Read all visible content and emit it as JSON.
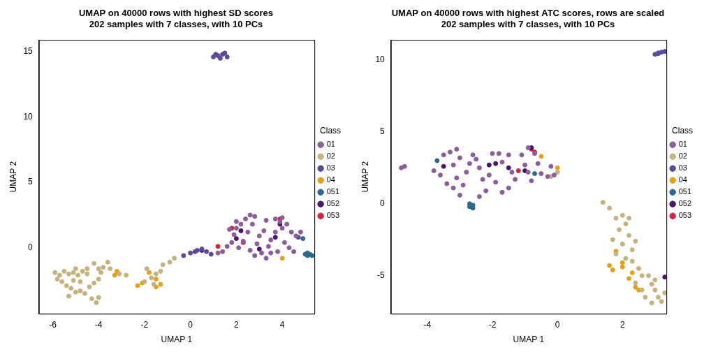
{
  "chart_data": [
    {
      "type": "scatter",
      "title": "UMAP on 40000 rows with highest SD scores",
      "subtitle": "202 samples with 7 classes, with 10 PCs",
      "x_label": "UMAP 1",
      "y_label": "UMAP 2",
      "legend": "right",
      "legend_title": "Class",
      "grid": false,
      "marker": "circle",
      "xlim": [
        -6.6,
        5.4
      ],
      "xticks": [
        -6,
        -4,
        -2,
        0,
        2,
        4
      ],
      "ylim": [
        -5.05,
        15.9
      ],
      "yticks": [
        0,
        5,
        10,
        15
      ],
      "series": [
        {
          "name": "01",
          "color": "#8B5E9B",
          "values": [
            [
              1.2,
              -0.4
            ],
            [
              1.4,
              -0.3
            ],
            [
              1.6,
              0.1
            ],
            [
              1.8,
              0.4
            ],
            [
              1.9,
              1.0
            ],
            [
              2.0,
              1.5
            ],
            [
              2.2,
              1.8
            ],
            [
              2.4,
              2.2
            ],
            [
              2.6,
              2.5
            ],
            [
              2.8,
              2.4
            ],
            [
              2.5,
              1.2
            ],
            [
              2.3,
              0.5
            ],
            [
              2.1,
              0.0
            ],
            [
              2.6,
              -0.2
            ],
            [
              2.9,
              0.3
            ],
            [
              3.0,
              0.9
            ],
            [
              3.2,
              1.3
            ],
            [
              3.1,
              -0.4
            ],
            [
              3.4,
              0.1
            ],
            [
              3.5,
              0.6
            ],
            [
              3.7,
              1.2
            ],
            [
              3.7,
              2.2
            ],
            [
              3.9,
              2.0
            ],
            [
              4.0,
              1.5
            ],
            [
              4.2,
              1.8
            ],
            [
              4.1,
              0.4
            ],
            [
              4.3,
              0.0
            ],
            [
              4.5,
              -0.3
            ],
            [
              4.6,
              0.9
            ],
            [
              4.4,
              1.2
            ],
            [
              3.8,
              -0.3
            ],
            [
              2.8,
              -0.6
            ],
            [
              3.3,
              -0.8
            ],
            [
              1.7,
              1.4
            ],
            [
              2.0,
              2.0
            ],
            [
              3.5,
              -0.4
            ],
            [
              4.8,
              1.2
            ],
            [
              4.0,
              2.3
            ],
            [
              2.7,
              1.8
            ],
            [
              3.3,
              2.1
            ]
          ]
        },
        {
          "name": "02",
          "color": "#C5B37F",
          "values": [
            [
              -5.9,
              -1.9
            ],
            [
              -5.7,
              -2.1
            ],
            [
              -5.5,
              -1.8
            ],
            [
              -5.3,
              -2.0
            ],
            [
              -5.1,
              -1.9
            ],
            [
              -4.9,
              -2.1
            ],
            [
              -4.7,
              -1.8
            ],
            [
              -4.5,
              -2.0
            ],
            [
              -5.6,
              -2.6
            ],
            [
              -5.4,
              -2.9
            ],
            [
              -5.2,
              -3.1
            ],
            [
              -5.0,
              -3.4
            ],
            [
              -4.8,
              -3.3
            ],
            [
              -4.6,
              -3.5
            ],
            [
              -4.4,
              -3.0
            ],
            [
              -4.2,
              -2.7
            ],
            [
              -4.0,
              -2.4
            ],
            [
              -4.0,
              -1.6
            ],
            [
              -4.2,
              -1.2
            ],
            [
              -3.8,
              -1.5
            ],
            [
              -3.6,
              -1.1
            ],
            [
              -3.5,
              -1.6
            ],
            [
              -4.0,
              -3.8
            ],
            [
              -4.1,
              -4.2
            ],
            [
              -4.3,
              -3.9
            ],
            [
              -5.3,
              -3.7
            ],
            [
              -5.1,
              -2.5
            ],
            [
              -4.8,
              -2.6
            ],
            [
              -3.9,
              -1.9
            ],
            [
              -5.8,
              -2.4
            ],
            [
              -4.5,
              -1.6
            ],
            [
              -5.0,
              -1.6
            ],
            [
              -3.1,
              -2.0
            ],
            [
              -2.8,
              -2.1
            ],
            [
              -1.9,
              -1.6
            ],
            [
              -1.7,
              -2.3
            ],
            [
              -1.5,
              -2.0
            ],
            [
              -1.3,
              -1.8
            ],
            [
              -1.2,
              -1.3
            ],
            [
              -0.9,
              -1.1
            ],
            [
              -0.7,
              -0.8
            ],
            [
              -1.6,
              -2.8
            ],
            [
              -2.0,
              -2.6
            ]
          ]
        },
        {
          "name": "03",
          "color": "#5B4A9B",
          "values": [
            [
              1.0,
              14.6
            ],
            [
              1.2,
              14.7
            ],
            [
              1.4,
              14.8
            ],
            [
              1.5,
              14.9
            ],
            [
              1.6,
              14.6
            ],
            [
              1.3,
              14.5
            ],
            [
              1.1,
              14.8
            ],
            [
              -0.3,
              -0.6
            ],
            [
              0.0,
              -0.4
            ],
            [
              0.3,
              -0.2
            ],
            [
              0.5,
              -0.1
            ],
            [
              0.7,
              -0.3
            ],
            [
              0.9,
              -0.5
            ],
            [
              0.2,
              -0.3
            ],
            [
              4.7,
              0.8
            ]
          ]
        },
        {
          "name": "04",
          "color": "#E6A117",
          "values": [
            [
              -3.3,
              -2.1
            ],
            [
              -2.3,
              -2.9
            ],
            [
              -2.1,
              -2.7
            ],
            [
              -1.5,
              -3.0
            ],
            [
              -1.3,
              -2.8
            ],
            [
              -1.5,
              -2.4
            ],
            [
              -1.8,
              -1.9
            ],
            [
              -3.2,
              -1.8
            ],
            [
              4.0,
              -0.8
            ]
          ]
        },
        {
          "name": "051",
          "color": "#2B6A8A",
          "values": [
            [
              5.0,
              -0.5
            ],
            [
              5.1,
              -0.6
            ],
            [
              5.2,
              -0.5
            ],
            [
              5.3,
              -0.6
            ],
            [
              5.1,
              -0.4
            ],
            [
              4.9,
              0.7
            ]
          ]
        },
        {
          "name": "052",
          "color": "#4A1470",
          "values": [
            [
              2.0,
              0.7
            ],
            [
              2.2,
              1.3
            ],
            [
              3.7,
              0.8
            ],
            [
              3.9,
              1.8
            ],
            [
              3.0,
              -0.1
            ],
            [
              0.5,
              -0.2
            ]
          ]
        },
        {
          "name": "053",
          "color": "#D6233C",
          "values": [
            [
              1.8,
              1.5
            ],
            [
              2.3,
              0.4
            ],
            [
              3.9,
              2.2
            ],
            [
              1.2,
              0.1
            ]
          ]
        }
      ]
    },
    {
      "type": "scatter",
      "title": "UMAP on 40000 rows with highest ATC scores, rows are scaled",
      "subtitle": "202 samples with 7 classes, with 10 PCs",
      "x_label": "UMAP 1",
      "y_label": "UMAP 2",
      "legend": "right",
      "legend_title": "Class",
      "grid": false,
      "marker": "circle",
      "xlim": [
        -5.12,
        3.35
      ],
      "xticks": [
        -4,
        -2,
        0,
        2
      ],
      "ylim": [
        -7.65,
        11.4
      ],
      "yticks": [
        -5,
        0,
        5,
        10
      ],
      "series": [
        {
          "name": "01",
          "color": "#8B5E9B",
          "values": [
            [
              -4.8,
              2.5
            ],
            [
              -4.7,
              2.6
            ],
            [
              -3.8,
              2.3
            ],
            [
              -3.6,
              2.0
            ],
            [
              -3.5,
              3.4
            ],
            [
              -3.3,
              3.6
            ],
            [
              -3.1,
              3.8
            ],
            [
              -3.0,
              3.2
            ],
            [
              -3.2,
              2.7
            ],
            [
              -3.1,
              1.8
            ],
            [
              -3.2,
              1.1
            ],
            [
              -3.0,
              0.6
            ],
            [
              -2.9,
              1.3
            ],
            [
              -2.8,
              2.2
            ],
            [
              -2.6,
              3.4
            ],
            [
              -2.5,
              3.1
            ],
            [
              -2.4,
              2.5
            ],
            [
              -2.3,
              1.7
            ],
            [
              -2.2,
              0.9
            ],
            [
              -2.4,
              0.5
            ],
            [
              -2.0,
              3.5
            ],
            [
              -1.8,
              3.5
            ],
            [
              -1.7,
              2.9
            ],
            [
              -1.5,
              3.4
            ],
            [
              -1.4,
              2.2
            ],
            [
              -1.3,
              1.7
            ],
            [
              -1.5,
              1.1
            ],
            [
              -1.7,
              0.8
            ],
            [
              -1.9,
              1.5
            ],
            [
              -1.1,
              3.4
            ],
            [
              -1.0,
              2.7
            ],
            [
              -0.9,
              2.2
            ],
            [
              -0.8,
              1.6
            ],
            [
              -0.6,
              2.8
            ],
            [
              -0.5,
              2.1
            ],
            [
              -0.3,
              1.9
            ],
            [
              -0.2,
              2.6
            ],
            [
              -0.1,
              2.0
            ],
            [
              -0.7,
              3.5
            ],
            [
              -0.9,
              3.9
            ],
            [
              -2.7,
              2.8
            ],
            [
              -3.4,
              1.4
            ],
            [
              -2.1,
              2.0
            ]
          ]
        },
        {
          "name": "02",
          "color": "#C5B37F",
          "values": [
            [
              1.4,
              0.1
            ],
            [
              1.6,
              -0.3
            ],
            [
              1.8,
              -1.0
            ],
            [
              2.0,
              -0.8
            ],
            [
              1.9,
              -1.8
            ],
            [
              2.1,
              -1.4
            ],
            [
              2.2,
              -2.2
            ],
            [
              2.0,
              -2.8
            ],
            [
              2.3,
              -3.2
            ],
            [
              2.1,
              -3.8
            ],
            [
              2.3,
              -4.0
            ],
            [
              1.8,
              -3.5
            ],
            [
              2.5,
              -4.5
            ],
            [
              2.6,
              -5.0
            ],
            [
              2.4,
              -5.5
            ],
            [
              2.8,
              -5.0
            ],
            [
              2.9,
              -5.6
            ],
            [
              3.0,
              -6.0
            ],
            [
              3.1,
              -6.5
            ],
            [
              3.2,
              -6.8
            ],
            [
              2.9,
              -6.9
            ],
            [
              2.7,
              -6.5
            ],
            [
              3.3,
              -6.2
            ],
            [
              2.6,
              -6.0
            ],
            [
              2.2,
              -1.0
            ],
            [
              1.7,
              -2.5
            ],
            [
              -0.2,
              1.9
            ],
            [
              0.0,
              2.2
            ],
            [
              2.4,
              -2.6
            ],
            [
              3.0,
              -5.3
            ]
          ]
        },
        {
          "name": "03",
          "color": "#5B4A9B",
          "values": [
            [
              3.0,
              10.4
            ],
            [
              3.1,
              10.5
            ],
            [
              3.2,
              10.55
            ],
            [
              3.3,
              10.6
            ],
            [
              3.4,
              10.6
            ],
            [
              3.1,
              10.45
            ]
          ]
        },
        {
          "name": "04",
          "color": "#E6A117",
          "values": [
            [
              1.6,
              -4.3
            ],
            [
              1.7,
              -4.6
            ],
            [
              1.8,
              -3.3
            ],
            [
              2.0,
              -4.1
            ],
            [
              2.2,
              -5.2
            ],
            [
              2.4,
              -5.8
            ],
            [
              2.5,
              -6.0
            ],
            [
              2.3,
              -4.8
            ],
            [
              0.0,
              2.5
            ],
            [
              -0.5,
              3.3
            ],
            [
              2.0,
              -4.4
            ]
          ]
        },
        {
          "name": "051",
          "color": "#2B6A8A",
          "values": [
            [
              -2.7,
              0.0
            ],
            [
              -2.6,
              -0.3
            ],
            [
              -2.6,
              -0.1
            ],
            [
              -2.7,
              -0.2
            ],
            [
              -0.7,
              2.1
            ],
            [
              -3.7,
              3.0
            ]
          ]
        },
        {
          "name": "052",
          "color": "#4A1470",
          "values": [
            [
              -1.9,
              2.8
            ],
            [
              -2.1,
              2.7
            ],
            [
              -3.5,
              2.6
            ],
            [
              -0.8,
              3.9
            ],
            [
              -1.0,
              2.3
            ],
            [
              3.3,
              -5.1
            ],
            [
              -1.5,
              2.5
            ]
          ]
        },
        {
          "name": "053",
          "color": "#D6233C",
          "values": [
            [
              -0.8,
              3.8
            ],
            [
              -0.7,
              3.6
            ],
            [
              -1.2,
              2.3
            ]
          ]
        }
      ]
    }
  ]
}
